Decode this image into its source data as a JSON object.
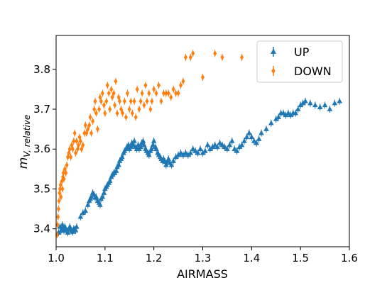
{
  "chart_data": {
    "type": "scatter",
    "xlabel": "AIRMASS",
    "ylabel_main": "m",
    "ylabel_sub": "V, relative",
    "xlim": [
      1.0,
      1.6
    ],
    "ylim": [
      3.355,
      3.885
    ],
    "xticks": [
      "1.0",
      "1.1",
      "1.2",
      "1.3",
      "1.4",
      "1.5",
      "1.6"
    ],
    "xtick_values": [
      1.0,
      1.1,
      1.2,
      1.3,
      1.4,
      1.5,
      1.6
    ],
    "yticks": [
      "3.4",
      "3.5",
      "3.6",
      "3.7",
      "3.8"
    ],
    "ytick_values": [
      3.4,
      3.5,
      3.6,
      3.7,
      3.8
    ],
    "grid": false,
    "legend_position": "top-right",
    "series": [
      {
        "name": "UP",
        "color": "#1f77b4",
        "marker": "triangle-up",
        "x": [
          1.005,
          1.008,
          1.01,
          1.012,
          1.013,
          1.015,
          1.016,
          1.018,
          1.02,
          1.022,
          1.024,
          1.026,
          1.028,
          1.03,
          1.032,
          1.034,
          1.036,
          1.038,
          1.04,
          1.042,
          1.05,
          1.055,
          1.06,
          1.065,
          1.068,
          1.07,
          1.072,
          1.075,
          1.078,
          1.08,
          1.082,
          1.085,
          1.088,
          1.09,
          1.092,
          1.095,
          1.098,
          1.1,
          1.103,
          1.105,
          1.108,
          1.11,
          1.113,
          1.115,
          1.118,
          1.12,
          1.123,
          1.125,
          1.128,
          1.13,
          1.133,
          1.135,
          1.138,
          1.14,
          1.143,
          1.145,
          1.148,
          1.15,
          1.153,
          1.155,
          1.158,
          1.16,
          1.163,
          1.165,
          1.168,
          1.17,
          1.173,
          1.175,
          1.178,
          1.18,
          1.183,
          1.185,
          1.188,
          1.19,
          1.193,
          1.195,
          1.198,
          1.2,
          1.203,
          1.205,
          1.208,
          1.21,
          1.213,
          1.215,
          1.218,
          1.22,
          1.223,
          1.225,
          1.228,
          1.23,
          1.233,
          1.236,
          1.24,
          1.245,
          1.25,
          1.255,
          1.26,
          1.265,
          1.27,
          1.275,
          1.28,
          1.285,
          1.29,
          1.295,
          1.3,
          1.305,
          1.31,
          1.315,
          1.32,
          1.325,
          1.33,
          1.335,
          1.34,
          1.345,
          1.35,
          1.355,
          1.36,
          1.365,
          1.37,
          1.375,
          1.38,
          1.385,
          1.39,
          1.395,
          1.4,
          1.405,
          1.41,
          1.415,
          1.42,
          1.43,
          1.44,
          1.45,
          1.455,
          1.46,
          1.465,
          1.47,
          1.475,
          1.48,
          1.485,
          1.49,
          1.495,
          1.5,
          1.505,
          1.51,
          1.52,
          1.53,
          1.54,
          1.55,
          1.56,
          1.57,
          1.58
        ],
        "y": [
          3.39,
          3.405,
          3.395,
          3.4,
          3.41,
          3.4,
          3.395,
          3.405,
          3.4,
          3.395,
          3.39,
          3.398,
          3.405,
          3.4,
          3.395,
          3.392,
          3.4,
          3.398,
          3.396,
          3.405,
          3.43,
          3.44,
          3.445,
          3.46,
          3.47,
          3.475,
          3.48,
          3.49,
          3.485,
          3.478,
          3.48,
          3.47,
          3.465,
          3.46,
          3.475,
          3.48,
          3.49,
          3.5,
          3.505,
          3.51,
          3.515,
          3.52,
          3.53,
          3.535,
          3.54,
          3.54,
          3.545,
          3.555,
          3.56,
          3.57,
          3.575,
          3.58,
          3.59,
          3.595,
          3.6,
          3.605,
          3.61,
          3.6,
          3.605,
          3.615,
          3.61,
          3.62,
          3.605,
          3.6,
          3.61,
          3.6,
          3.605,
          3.615,
          3.62,
          3.61,
          3.6,
          3.595,
          3.59,
          3.585,
          3.595,
          3.6,
          3.61,
          3.62,
          3.605,
          3.6,
          3.59,
          3.585,
          3.58,
          3.575,
          3.57,
          3.575,
          3.568,
          3.56,
          3.57,
          3.575,
          3.565,
          3.56,
          3.57,
          3.58,
          3.585,
          3.59,
          3.585,
          3.59,
          3.585,
          3.59,
          3.6,
          3.595,
          3.59,
          3.6,
          3.59,
          3.595,
          3.61,
          3.6,
          3.605,
          3.61,
          3.605,
          3.615,
          3.61,
          3.605,
          3.6,
          3.61,
          3.62,
          3.6,
          3.595,
          3.605,
          3.61,
          3.62,
          3.63,
          3.64,
          3.63,
          3.62,
          3.615,
          3.625,
          3.64,
          3.65,
          3.665,
          3.675,
          3.68,
          3.69,
          3.69,
          3.685,
          3.69,
          3.685,
          3.69,
          3.69,
          3.7,
          3.71,
          3.715,
          3.72,
          3.715,
          3.71,
          3.705,
          3.71,
          3.7,
          3.715,
          3.72
        ]
      },
      {
        "name": "DOWN",
        "color": "#ff7f0e",
        "marker": "diamond",
        "x": [
          1.002,
          1.003,
          1.004,
          1.005,
          1.006,
          1.007,
          1.008,
          1.009,
          1.01,
          1.012,
          1.013,
          1.014,
          1.015,
          1.016,
          1.018,
          1.02,
          1.022,
          1.024,
          1.026,
          1.028,
          1.03,
          1.032,
          1.034,
          1.036,
          1.038,
          1.04,
          1.042,
          1.044,
          1.046,
          1.048,
          1.05,
          1.052,
          1.055,
          1.058,
          1.06,
          1.062,
          1.065,
          1.068,
          1.07,
          1.072,
          1.075,
          1.078,
          1.08,
          1.082,
          1.085,
          1.088,
          1.09,
          1.092,
          1.095,
          1.098,
          1.1,
          1.103,
          1.105,
          1.108,
          1.11,
          1.113,
          1.115,
          1.118,
          1.12,
          1.122,
          1.125,
          1.128,
          1.13,
          1.133,
          1.136,
          1.14,
          1.143,
          1.146,
          1.15,
          1.153,
          1.156,
          1.16,
          1.163,
          1.166,
          1.17,
          1.173,
          1.176,
          1.18,
          1.183,
          1.186,
          1.19,
          1.193,
          1.196,
          1.2,
          1.205,
          1.21,
          1.215,
          1.22,
          1.225,
          1.23,
          1.235,
          1.24,
          1.245,
          1.25,
          1.255,
          1.26,
          1.265,
          1.275,
          1.28,
          1.3,
          1.325,
          1.34,
          1.38
        ],
        "y": [
          3.385,
          3.41,
          3.43,
          3.45,
          3.47,
          3.49,
          3.5,
          3.51,
          3.48,
          3.52,
          3.5,
          3.53,
          3.54,
          3.525,
          3.55,
          3.54,
          3.56,
          3.58,
          3.59,
          3.6,
          3.58,
          3.61,
          3.6,
          3.62,
          3.64,
          3.59,
          3.62,
          3.6,
          3.61,
          3.63,
          3.62,
          3.6,
          3.61,
          3.64,
          3.66,
          3.64,
          3.65,
          3.66,
          3.68,
          3.64,
          3.67,
          3.7,
          3.72,
          3.69,
          3.65,
          3.7,
          3.73,
          3.72,
          3.74,
          3.71,
          3.69,
          3.72,
          3.76,
          3.74,
          3.7,
          3.75,
          3.73,
          3.74,
          3.71,
          3.77,
          3.69,
          3.73,
          3.72,
          3.7,
          3.69,
          3.72,
          3.68,
          3.74,
          3.7,
          3.72,
          3.69,
          3.72,
          3.68,
          3.75,
          3.7,
          3.72,
          3.74,
          3.71,
          3.76,
          3.72,
          3.74,
          3.7,
          3.72,
          3.75,
          3.74,
          3.76,
          3.72,
          3.74,
          3.74,
          3.74,
          3.73,
          3.75,
          3.74,
          3.74,
          3.76,
          3.77,
          3.83,
          3.83,
          3.84,
          3.78,
          3.84,
          3.83,
          3.83
        ]
      }
    ]
  }
}
